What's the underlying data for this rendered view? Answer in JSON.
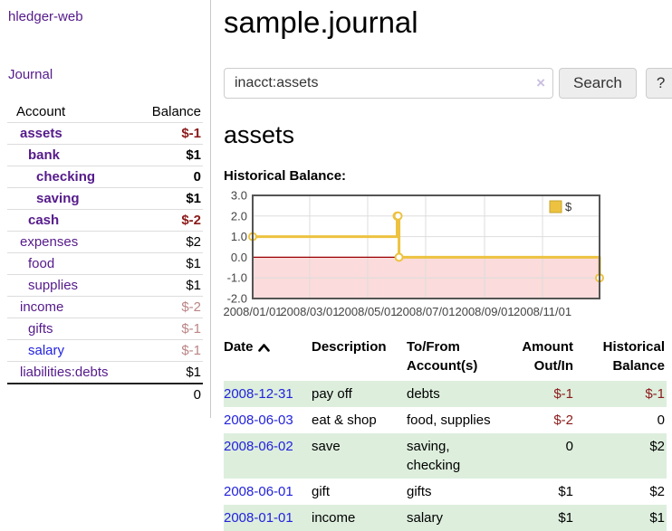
{
  "app": {
    "title": "hledger-web"
  },
  "colors": {
    "purple": "#551a8b",
    "blue": "#2222dd",
    "negative_strong": "#8b1a1a",
    "negative_soft": "#bb8585",
    "row_green": "#ddeedd",
    "chart_line": "#edc240",
    "chart_line_edge": "#c6a62f",
    "chart_negative_bg": "#fbdbdb",
    "chart_zero_line": "#990000",
    "chart_grid": "#dddddd",
    "chart_border": "#545454",
    "chart_tick_text": "#444444"
  },
  "sidebar": {
    "journal_link": "Journal",
    "accounts": {
      "header_account": "Account",
      "header_balance": "Balance",
      "rows": [
        {
          "label": "assets",
          "balance": "$-1",
          "depth": 1,
          "bold": true,
          "link": "purple",
          "neg": "strong"
        },
        {
          "label": "bank",
          "balance": "$1",
          "depth": 2,
          "bold": true,
          "link": "purple",
          "neg": null
        },
        {
          "label": "checking",
          "balance": "0",
          "depth": 3,
          "bold": true,
          "link": "purple",
          "neg": null
        },
        {
          "label": "saving",
          "balance": "$1",
          "depth": 3,
          "bold": true,
          "link": "purple",
          "neg": null
        },
        {
          "label": "cash",
          "balance": "$-2",
          "depth": 2,
          "bold": true,
          "link": "purple",
          "neg": "strong"
        },
        {
          "label": "expenses",
          "balance": "$2",
          "depth": 1,
          "bold": false,
          "link": "purple",
          "neg": null
        },
        {
          "label": "food",
          "balance": "$1",
          "depth": 2,
          "bold": false,
          "link": "purple",
          "neg": null
        },
        {
          "label": "supplies",
          "balance": "$1",
          "depth": 2,
          "bold": false,
          "link": "purple",
          "neg": null
        },
        {
          "label": "income",
          "balance": "$-2",
          "depth": 1,
          "bold": false,
          "link": "purple",
          "neg": "soft"
        },
        {
          "label": "gifts",
          "balance": "$-1",
          "depth": 2,
          "bold": false,
          "link": "purple",
          "neg": "soft"
        },
        {
          "label": "salary",
          "balance": "$-1",
          "depth": 2,
          "bold": false,
          "link": "blue",
          "neg": "soft"
        },
        {
          "label": "liabilities:debts",
          "balance": "$1",
          "depth": 1,
          "bold": false,
          "link": "purple",
          "neg": null,
          "thick_border": true
        }
      ],
      "total": "0"
    }
  },
  "main": {
    "title": "sample.journal",
    "search": {
      "value": "inacct:assets",
      "clear_icon": "×",
      "button_label": "Search",
      "help_label": "?"
    },
    "account_heading": "assets",
    "chart_label": "Historical Balance:"
  },
  "chart_data": {
    "type": "line",
    "step": true,
    "title": "Historical Balance",
    "series": [
      {
        "name": "$",
        "points": [
          [
            "2008/01/01",
            1
          ],
          [
            "2008/06/01",
            2
          ],
          [
            "2008/06/02",
            2
          ],
          [
            "2008/06/03",
            0
          ],
          [
            "2008/12/31",
            -1
          ]
        ]
      }
    ],
    "x_range": [
      "2008/01/01",
      "2008/12/31"
    ],
    "x_ticks": [
      "2008/01/01",
      "2008/03/01",
      "2008/05/01",
      "2008/07/01",
      "2008/09/01",
      "2008/11/01"
    ],
    "y_ticks": [
      "3.0",
      "2.0",
      "1.0",
      "0.0",
      "-1.0",
      "-2.0"
    ],
    "ylim": [
      -2,
      3
    ],
    "grid": true,
    "legend_position": "top-right",
    "negative_region_shaded": true
  },
  "register": {
    "headers": {
      "date": "Date",
      "sort_indicator": "asc",
      "description": "Description",
      "accounts": "To/From Account(s)",
      "amount": "Amount Out/In",
      "balance": "Historical Balance"
    },
    "rows": [
      {
        "date": "2008-12-31",
        "description": "pay off",
        "accounts": "debts",
        "amount": "$-1",
        "amount_neg": true,
        "balance": "$-1",
        "balance_neg": true
      },
      {
        "date": "2008-06-03",
        "description": "eat & shop",
        "accounts": "food, supplies",
        "amount": "$-2",
        "amount_neg": true,
        "balance": "0",
        "balance_neg": false
      },
      {
        "date": "2008-06-02",
        "description": "save",
        "accounts": "saving, checking",
        "amount": "0",
        "amount_neg": false,
        "balance": "$2",
        "balance_neg": false
      },
      {
        "date": "2008-06-01",
        "description": "gift",
        "accounts": "gifts",
        "amount": "$1",
        "amount_neg": false,
        "balance": "$2",
        "balance_neg": false
      },
      {
        "date": "2008-01-01",
        "description": "income",
        "accounts": "salary",
        "amount": "$1",
        "amount_neg": false,
        "balance": "$1",
        "balance_neg": false
      }
    ]
  }
}
